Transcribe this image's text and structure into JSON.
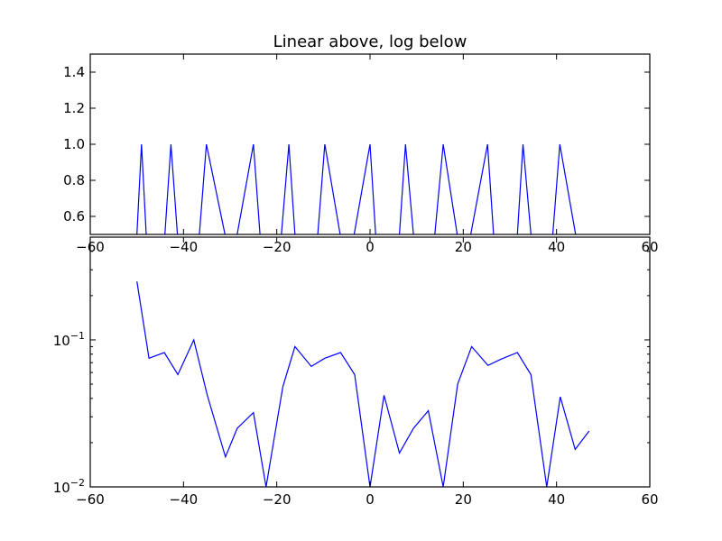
{
  "chart_data": [
    {
      "type": "line",
      "title": "Linear above, log below",
      "xlabel": "",
      "ylabel": "",
      "xlim": [
        -60,
        60
      ],
      "ylim": [
        0.5,
        1.5
      ],
      "yscale": "linear",
      "grid": false,
      "x_ticks": [
        "−60",
        "−40",
        "−20",
        "0",
        "20",
        "40",
        "60"
      ],
      "y_ticks": [
        "0.6",
        "0.8",
        "1.0",
        "1.2",
        "1.4"
      ],
      "series": [
        {
          "color": "#0000ff",
          "x": [
            -50,
            -49.0,
            -48,
            -47.1,
            -44,
            -42.7,
            -41.3,
            -37.9,
            -36.6,
            -35.1,
            -31.1,
            -30.0,
            -28.5,
            -25.0,
            -23.6,
            -22.3,
            -19.0,
            -17.4,
            -16.1,
            -12.6,
            -11.2,
            -9.7,
            -6.4,
            -5.0,
            -3.4,
            0.0,
            1.2,
            3.1,
            6.3,
            7.6,
            9.3,
            12.5,
            13.9,
            15.7,
            18.7,
            20.2,
            21.6,
            25.2,
            26.5,
            28.1,
            31.6,
            32.8,
            34.5,
            37.9,
            39.2,
            40.7,
            44.1,
            45.5,
            47.1
          ],
          "y": [
            0.5,
            1.0,
            0.5,
            null,
            0.5,
            1.0,
            0.5,
            null,
            0.5,
            1.0,
            0.5,
            null,
            0.5,
            1.0,
            0.5,
            null,
            0.5,
            1.0,
            0.5,
            null,
            0.5,
            1.0,
            0.5,
            null,
            0.5,
            1.0,
            0.5,
            null,
            0.5,
            1.0,
            0.5,
            null,
            0.5,
            1.0,
            0.5,
            null,
            0.5,
            1.0,
            0.5,
            null,
            0.5,
            1.0,
            0.5,
            null,
            0.5,
            1.0,
            0.5,
            null,
            0.5
          ]
        }
      ]
    },
    {
      "type": "line",
      "title": "",
      "xlabel": "",
      "ylabel": "",
      "xlim": [
        -60,
        60
      ],
      "ylim": [
        0.01,
        0.5
      ],
      "yscale": "log",
      "grid": false,
      "x_ticks": [
        "−60",
        "−40",
        "−20",
        "0",
        "20",
        "40",
        "60"
      ],
      "y_tick_labels": [
        {
          "value": 0.1,
          "base": "10",
          "exp": "−1"
        },
        {
          "value": 0.01,
          "base": "10",
          "exp": "−2"
        }
      ],
      "series": [
        {
          "color": "#0000ff",
          "x": [
            -50.0,
            -47.4,
            -44.1,
            -41.2,
            -37.8,
            -34.9,
            -31.0,
            -28.5,
            -25.0,
            -22.3,
            -18.7,
            -16.1,
            -12.6,
            -9.7,
            -6.3,
            -3.3,
            0.0,
            3.0,
            6.3,
            9.3,
            12.5,
            15.7,
            18.8,
            21.8,
            25.3,
            28.1,
            31.6,
            34.5,
            37.9,
            40.8,
            44.0,
            47.0
          ],
          "y": [
            0.25,
            0.075,
            0.082,
            0.058,
            0.1,
            0.042,
            0.016,
            0.025,
            0.032,
            0.01,
            0.048,
            0.09,
            0.066,
            0.075,
            0.082,
            0.058,
            0.01,
            0.042,
            0.017,
            0.025,
            0.033,
            0.01,
            0.05,
            0.09,
            0.067,
            0.074,
            0.082,
            0.058,
            0.01,
            0.041,
            0.018,
            0.024
          ]
        }
      ]
    }
  ]
}
